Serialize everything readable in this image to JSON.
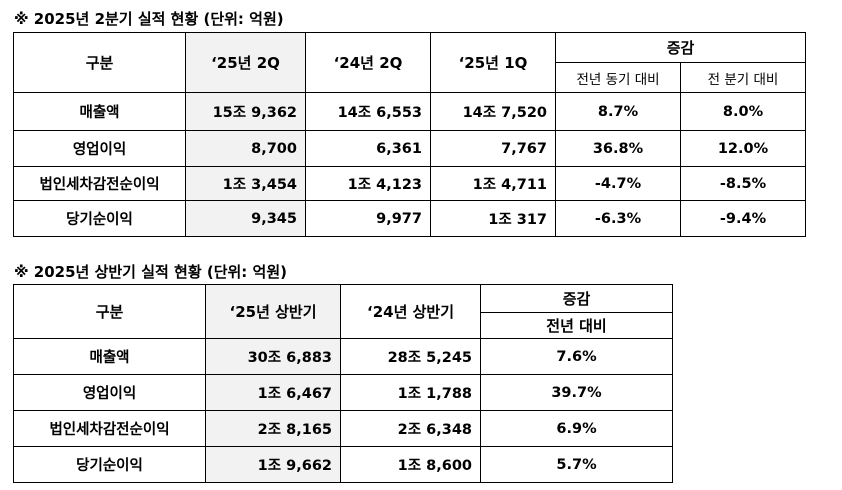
{
  "tables": [
    {
      "title": "※ 2025년 2분기 실적 현황 (단위: 억원)",
      "header": {
        "label": "구분",
        "columns": [
          "‘25년 2Q",
          "‘24년 2Q",
          "‘25년 1Q"
        ],
        "change": "증감",
        "change_columns": [
          "전년 동기 대비",
          "전 분기 대비"
        ]
      },
      "rows": [
        [
          "매출액",
          "15조 9,362",
          "14조 6,553",
          "14조 7,520",
          "8.7%",
          "8.0%"
        ],
        [
          "영업이익",
          "8,700",
          "6,361",
          "7,767",
          "36.8%",
          "12.0%"
        ],
        [
          "법인세차감전순이익",
          "1조 3,454",
          "1조 4,123",
          "1조 4,711",
          "-4.7%",
          "-8.5%"
        ],
        [
          "당기순이익",
          "9,345",
          "9,977",
          "1조 317",
          "-6.3%",
          "-9.4%"
        ]
      ]
    },
    {
      "title": "※ 2025년 상반기 실적 현황 (단위: 억원)",
      "header": {
        "label": "구분",
        "columns": [
          "‘25년 상반기",
          "‘24년 상반기"
        ],
        "change": "증감",
        "change_columns": [
          "전년 대비"
        ]
      },
      "rows": [
        [
          "매출액",
          "30조 6,883",
          "28조 5,245",
          "7.6%"
        ],
        [
          "영업이익",
          "1조 6,467",
          "1조 1,788",
          "39.7%"
        ],
        [
          "법인세차감전순이익",
          "2조 8,165",
          "2조 6,348",
          "6.9%"
        ],
        [
          "당기순이익",
          "1조 9,662",
          "1조 8,600",
          "5.7%"
        ]
      ]
    }
  ]
}
